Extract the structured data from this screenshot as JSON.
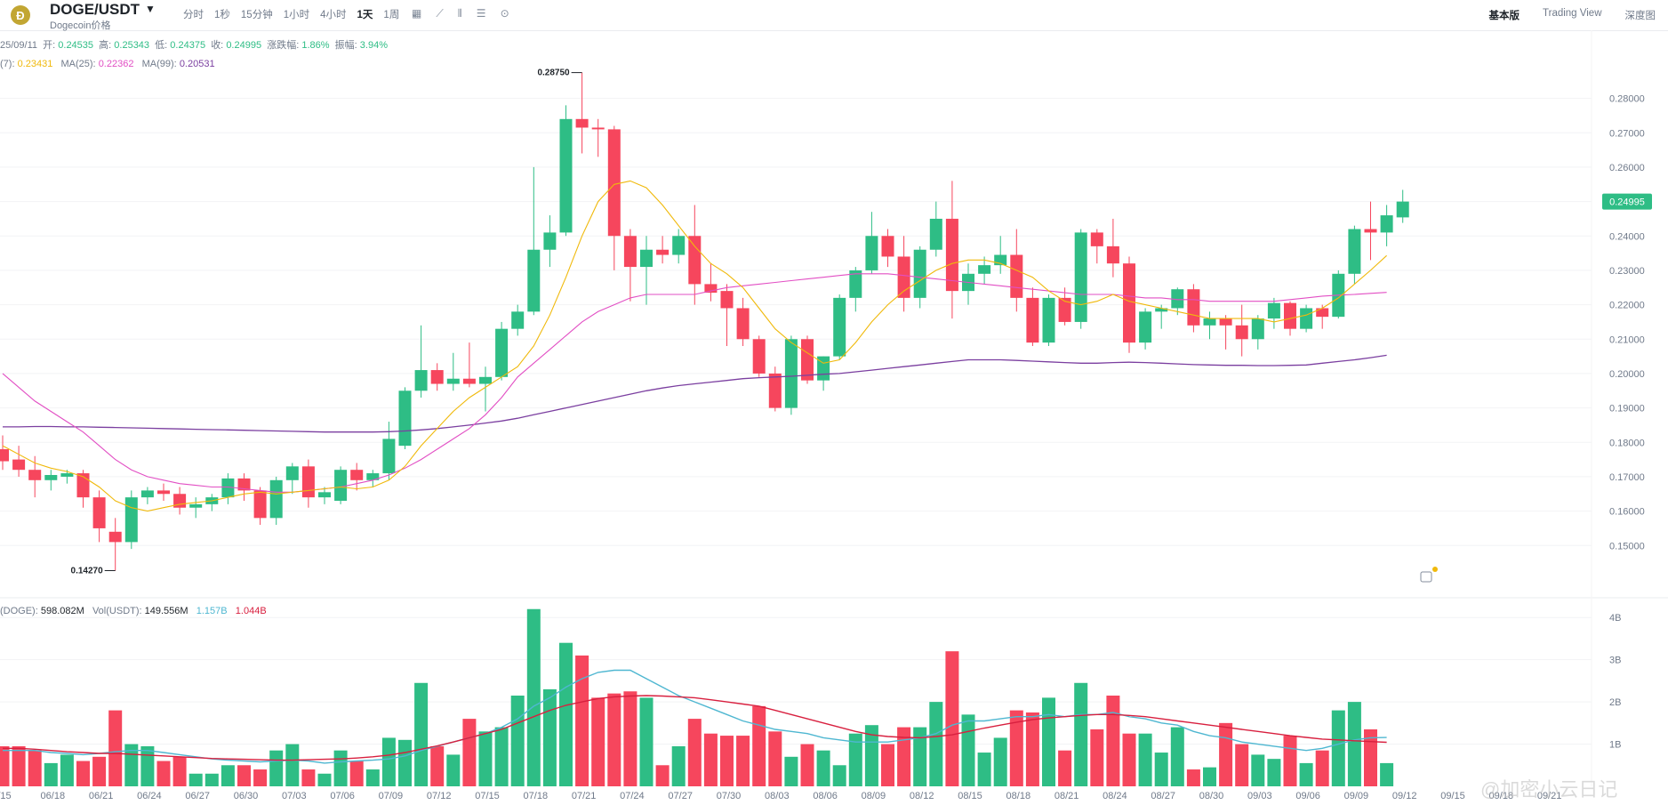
{
  "header": {
    "pair": "DOGE/USDT",
    "subtitle": "Dogecoin价格",
    "intervals": [
      "分时",
      "1秒",
      "15分钟",
      "1小时",
      "4小时",
      "1天",
      "1周"
    ],
    "active_interval": "1天",
    "views": [
      "基本版",
      "Trading View",
      "深度图"
    ],
    "active_view": "基本版"
  },
  "ohlc_row": {
    "date": "25/09/11",
    "open_label": "开:",
    "open": "0.24535",
    "high_label": "高:",
    "high": "0.25343",
    "low_label": "低:",
    "low": "0.24375",
    "close_label": "收:",
    "close": "0.24995",
    "change_label": "涨跌幅:",
    "change": "1.86%",
    "amplitude_label": "振幅:",
    "amplitude": "3.94%"
  },
  "ma_row": {
    "ma7_prefix": "(7):",
    "ma7": "0.23431",
    "ma25_label": "MA(25):",
    "ma25": "0.22362",
    "ma99_label": "MA(99):",
    "ma99": "0.20531"
  },
  "vol_row": {
    "vol_doge_label": "(DOGE):",
    "vol_doge": "598.082M",
    "vol_usdt_label": "Vol(USDT):",
    "vol_usdt": "149.556M",
    "vma1": "1.157B",
    "vma2": "1.044B"
  },
  "chart_data": {
    "type": "candlestick",
    "price_ticks": [
      "0.28000",
      "0.27000",
      "0.26000",
      "0.25000",
      "0.24000",
      "0.23000",
      "0.22000",
      "0.21000",
      "0.20000",
      "0.19000",
      "0.18000",
      "0.17000",
      "0.16000",
      "0.15000"
    ],
    "price_range": [
      0.1405,
      0.2905
    ],
    "volume_ticks": [
      "4B",
      "3B",
      "2B",
      "1B"
    ],
    "volume_range": [
      0,
      4.3
    ],
    "current_price_label": "0.24995",
    "max_annotation": "0.28750",
    "min_annotation": "0.14270",
    "x_tick_labels": [
      "/15",
      "06/18",
      "06/21",
      "06/24",
      "06/27",
      "06/30",
      "07/03",
      "07/06",
      "07/09",
      "07/12",
      "07/15",
      "07/18",
      "07/21",
      "07/24",
      "07/27",
      "07/30",
      "08/03",
      "08/06",
      "08/09",
      "08/12",
      "08/15",
      "08/18",
      "08/21",
      "08/24",
      "08/27",
      "08/30",
      "09/03",
      "09/06",
      "09/09",
      "09/12",
      "09/15",
      "09/18",
      "09/21"
    ],
    "candles": [
      {
        "o": 0.178,
        "h": 0.182,
        "l": 0.172,
        "c": 0.1745
      },
      {
        "o": 0.175,
        "h": 0.179,
        "l": 0.17,
        "c": 0.172
      },
      {
        "o": 0.172,
        "h": 0.176,
        "l": 0.164,
        "c": 0.169
      },
      {
        "o": 0.169,
        "h": 0.172,
        "l": 0.166,
        "c": 0.1705
      },
      {
        "o": 0.17,
        "h": 0.172,
        "l": 0.168,
        "c": 0.171
      },
      {
        "o": 0.171,
        "h": 0.172,
        "l": 0.161,
        "c": 0.164
      },
      {
        "o": 0.164,
        "h": 0.166,
        "l": 0.151,
        "c": 0.155
      },
      {
        "o": 0.154,
        "h": 0.158,
        "l": 0.1427,
        "c": 0.151
      },
      {
        "o": 0.151,
        "h": 0.166,
        "l": 0.149,
        "c": 0.164
      },
      {
        "o": 0.164,
        "h": 0.167,
        "l": 0.162,
        "c": 0.166
      },
      {
        "o": 0.166,
        "h": 0.168,
        "l": 0.163,
        "c": 0.165
      },
      {
        "o": 0.165,
        "h": 0.167,
        "l": 0.159,
        "c": 0.161
      },
      {
        "o": 0.161,
        "h": 0.164,
        "l": 0.158,
        "c": 0.162
      },
      {
        "o": 0.162,
        "h": 0.165,
        "l": 0.16,
        "c": 0.164
      },
      {
        "o": 0.164,
        "h": 0.171,
        "l": 0.162,
        "c": 0.1695
      },
      {
        "o": 0.1695,
        "h": 0.171,
        "l": 0.163,
        "c": 0.166
      },
      {
        "o": 0.166,
        "h": 0.167,
        "l": 0.156,
        "c": 0.158
      },
      {
        "o": 0.158,
        "h": 0.17,
        "l": 0.156,
        "c": 0.169
      },
      {
        "o": 0.169,
        "h": 0.174,
        "l": 0.165,
        "c": 0.173
      },
      {
        "o": 0.173,
        "h": 0.175,
        "l": 0.161,
        "c": 0.164
      },
      {
        "o": 0.164,
        "h": 0.167,
        "l": 0.162,
        "c": 0.1655
      },
      {
        "o": 0.163,
        "h": 0.173,
        "l": 0.162,
        "c": 0.172
      },
      {
        "o": 0.172,
        "h": 0.174,
        "l": 0.166,
        "c": 0.169
      },
      {
        "o": 0.169,
        "h": 0.172,
        "l": 0.167,
        "c": 0.171
      },
      {
        "o": 0.171,
        "h": 0.186,
        "l": 0.169,
        "c": 0.181
      },
      {
        "o": 0.179,
        "h": 0.196,
        "l": 0.178,
        "c": 0.195
      },
      {
        "o": 0.195,
        "h": 0.214,
        "l": 0.193,
        "c": 0.201
      },
      {
        "o": 0.201,
        "h": 0.203,
        "l": 0.195,
        "c": 0.197
      },
      {
        "o": 0.197,
        "h": 0.206,
        "l": 0.195,
        "c": 0.1985
      },
      {
        "o": 0.1985,
        "h": 0.209,
        "l": 0.196,
        "c": 0.197
      },
      {
        "o": 0.197,
        "h": 0.202,
        "l": 0.189,
        "c": 0.199
      },
      {
        "o": 0.199,
        "h": 0.215,
        "l": 0.198,
        "c": 0.213
      },
      {
        "o": 0.213,
        "h": 0.22,
        "l": 0.211,
        "c": 0.218
      },
      {
        "o": 0.218,
        "h": 0.26,
        "l": 0.217,
        "c": 0.236
      },
      {
        "o": 0.236,
        "h": 0.246,
        "l": 0.231,
        "c": 0.241
      },
      {
        "o": 0.241,
        "h": 0.278,
        "l": 0.24,
        "c": 0.274
      },
      {
        "o": 0.274,
        "h": 0.2875,
        "l": 0.264,
        "c": 0.2715
      },
      {
        "o": 0.2715,
        "h": 0.274,
        "l": 0.263,
        "c": 0.271
      },
      {
        "o": 0.271,
        "h": 0.272,
        "l": 0.23,
        "c": 0.24
      },
      {
        "o": 0.24,
        "h": 0.242,
        "l": 0.221,
        "c": 0.231
      },
      {
        "o": 0.231,
        "h": 0.24,
        "l": 0.22,
        "c": 0.236
      },
      {
        "o": 0.236,
        "h": 0.24,
        "l": 0.232,
        "c": 0.2345
      },
      {
        "o": 0.2345,
        "h": 0.242,
        "l": 0.232,
        "c": 0.24
      },
      {
        "o": 0.24,
        "h": 0.249,
        "l": 0.22,
        "c": 0.226
      },
      {
        "o": 0.226,
        "h": 0.232,
        "l": 0.221,
        "c": 0.2235
      },
      {
        "o": 0.224,
        "h": 0.226,
        "l": 0.208,
        "c": 0.219
      },
      {
        "o": 0.219,
        "h": 0.222,
        "l": 0.208,
        "c": 0.21
      },
      {
        "o": 0.21,
        "h": 0.211,
        "l": 0.199,
        "c": 0.2
      },
      {
        "o": 0.2,
        "h": 0.202,
        "l": 0.189,
        "c": 0.19
      },
      {
        "o": 0.19,
        "h": 0.211,
        "l": 0.188,
        "c": 0.21
      },
      {
        "o": 0.21,
        "h": 0.211,
        "l": 0.197,
        "c": 0.198
      },
      {
        "o": 0.198,
        "h": 0.205,
        "l": 0.195,
        "c": 0.205
      },
      {
        "o": 0.205,
        "h": 0.223,
        "l": 0.204,
        "c": 0.222
      },
      {
        "o": 0.222,
        "h": 0.231,
        "l": 0.218,
        "c": 0.23
      },
      {
        "o": 0.23,
        "h": 0.247,
        "l": 0.229,
        "c": 0.24
      },
      {
        "o": 0.24,
        "h": 0.242,
        "l": 0.231,
        "c": 0.234
      },
      {
        "o": 0.234,
        "h": 0.24,
        "l": 0.218,
        "c": 0.222
      },
      {
        "o": 0.222,
        "h": 0.237,
        "l": 0.219,
        "c": 0.236
      },
      {
        "o": 0.236,
        "h": 0.25,
        "l": 0.234,
        "c": 0.245
      },
      {
        "o": 0.245,
        "h": 0.256,
        "l": 0.216,
        "c": 0.224
      },
      {
        "o": 0.224,
        "h": 0.232,
        "l": 0.22,
        "c": 0.229
      },
      {
        "o": 0.229,
        "h": 0.234,
        "l": 0.226,
        "c": 0.2315
      },
      {
        "o": 0.2315,
        "h": 0.24,
        "l": 0.229,
        "c": 0.2345
      },
      {
        "o": 0.2345,
        "h": 0.242,
        "l": 0.218,
        "c": 0.222
      },
      {
        "o": 0.222,
        "h": 0.225,
        "l": 0.208,
        "c": 0.209
      },
      {
        "o": 0.209,
        "h": 0.223,
        "l": 0.208,
        "c": 0.222
      },
      {
        "o": 0.222,
        "h": 0.225,
        "l": 0.214,
        "c": 0.215
      },
      {
        "o": 0.215,
        "h": 0.242,
        "l": 0.213,
        "c": 0.241
      },
      {
        "o": 0.241,
        "h": 0.242,
        "l": 0.232,
        "c": 0.237
      },
      {
        "o": 0.237,
        "h": 0.245,
        "l": 0.228,
        "c": 0.232
      },
      {
        "o": 0.232,
        "h": 0.234,
        "l": 0.206,
        "c": 0.209
      },
      {
        "o": 0.209,
        "h": 0.219,
        "l": 0.207,
        "c": 0.218
      },
      {
        "o": 0.218,
        "h": 0.22,
        "l": 0.213,
        "c": 0.219
      },
      {
        "o": 0.219,
        "h": 0.225,
        "l": 0.217,
        "c": 0.2245
      },
      {
        "o": 0.2245,
        "h": 0.226,
        "l": 0.212,
        "c": 0.214
      },
      {
        "o": 0.214,
        "h": 0.218,
        "l": 0.21,
        "c": 0.216
      },
      {
        "o": 0.216,
        "h": 0.217,
        "l": 0.207,
        "c": 0.214
      },
      {
        "o": 0.214,
        "h": 0.22,
        "l": 0.205,
        "c": 0.21
      },
      {
        "o": 0.21,
        "h": 0.217,
        "l": 0.207,
        "c": 0.216
      },
      {
        "o": 0.216,
        "h": 0.222,
        "l": 0.213,
        "c": 0.2205
      },
      {
        "o": 0.2205,
        "h": 0.221,
        "l": 0.211,
        "c": 0.213
      },
      {
        "o": 0.213,
        "h": 0.22,
        "l": 0.212,
        "c": 0.219
      },
      {
        "o": 0.219,
        "h": 0.22,
        "l": 0.213,
        "c": 0.2165
      },
      {
        "o": 0.2165,
        "h": 0.23,
        "l": 0.216,
        "c": 0.229
      },
      {
        "o": 0.229,
        "h": 0.243,
        "l": 0.226,
        "c": 0.242
      },
      {
        "o": 0.242,
        "h": 0.25,
        "l": 0.233,
        "c": 0.241
      },
      {
        "o": 0.241,
        "h": 0.249,
        "l": 0.237,
        "c": 0.246
      },
      {
        "o": 0.2454,
        "h": 0.2534,
        "l": 0.2438,
        "c": 0.25
      }
    ],
    "volumes": [
      0.95,
      0.95,
      0.85,
      0.55,
      0.75,
      0.6,
      0.7,
      1.8,
      1.0,
      0.95,
      0.6,
      0.7,
      0.3,
      0.3,
      0.5,
      0.5,
      0.4,
      0.85,
      1.0,
      0.4,
      0.3,
      0.85,
      0.6,
      0.4,
      1.15,
      1.1,
      2.45,
      0.95,
      0.75,
      1.6,
      1.3,
      1.4,
      2.15,
      4.2,
      2.3,
      3.4,
      3.1,
      2.1,
      2.2,
      2.25,
      2.1,
      0.5,
      0.95,
      1.6,
      1.25,
      1.2,
      1.2,
      1.9,
      1.3,
      0.7,
      1.0,
      0.85,
      0.5,
      1.25,
      1.45,
      1.0,
      1.4,
      1.4,
      2.0,
      3.2,
      1.7,
      0.8,
      1.15,
      1.8,
      1.75,
      2.1,
      0.85,
      2.45,
      1.35,
      2.15,
      1.25,
      1.25,
      0.8,
      1.4,
      0.4,
      0.45,
      1.5,
      1.0,
      0.75,
      0.65,
      1.2,
      0.55,
      0.85,
      1.8,
      2.0,
      1.35,
      0.55
    ],
    "ma7": [
      0.179,
      0.1765,
      0.174,
      0.1725,
      0.1715,
      0.17,
      0.167,
      0.163,
      0.161,
      0.16,
      0.161,
      0.162,
      0.1625,
      0.163,
      0.164,
      0.165,
      0.1655,
      0.165,
      0.1655,
      0.166,
      0.1665,
      0.167,
      0.1665,
      0.167,
      0.169,
      0.173,
      0.179,
      0.184,
      0.189,
      0.193,
      0.196,
      0.199,
      0.202,
      0.208,
      0.217,
      0.228,
      0.24,
      0.25,
      0.255,
      0.256,
      0.254,
      0.249,
      0.243,
      0.237,
      0.232,
      0.229,
      0.225,
      0.219,
      0.213,
      0.209,
      0.206,
      0.203,
      0.204,
      0.209,
      0.215,
      0.22,
      0.224,
      0.227,
      0.23,
      0.232,
      0.233,
      0.233,
      0.232,
      0.23,
      0.228,
      0.224,
      0.221,
      0.22,
      0.221,
      0.223,
      0.221,
      0.22,
      0.219,
      0.218,
      0.217,
      0.216,
      0.216,
      0.216,
      0.216,
      0.215,
      0.216,
      0.217,
      0.219,
      0.222,
      0.226,
      0.23,
      0.2343
    ],
    "ma25": [
      0.2,
      0.196,
      0.192,
      0.189,
      0.186,
      0.183,
      0.179,
      0.175,
      0.172,
      0.17,
      0.169,
      0.168,
      0.1675,
      0.167,
      0.167,
      0.1665,
      0.166,
      0.1655,
      0.1655,
      0.166,
      0.1665,
      0.167,
      0.168,
      0.169,
      0.1705,
      0.1725,
      0.175,
      0.178,
      0.181,
      0.184,
      0.188,
      0.193,
      0.199,
      0.203,
      0.207,
      0.211,
      0.215,
      0.218,
      0.22,
      0.222,
      0.223,
      0.223,
      0.223,
      0.223,
      0.224,
      0.225,
      0.2255,
      0.226,
      0.2265,
      0.227,
      0.2275,
      0.228,
      0.2285,
      0.229,
      0.229,
      0.229,
      0.2285,
      0.228,
      0.2275,
      0.227,
      0.2265,
      0.226,
      0.2255,
      0.225,
      0.2245,
      0.224,
      0.2235,
      0.223,
      0.223,
      0.223,
      0.2225,
      0.222,
      0.222,
      0.2215,
      0.2215,
      0.221,
      0.221,
      0.221,
      0.221,
      0.221,
      0.2215,
      0.222,
      0.2225,
      0.2228,
      0.223,
      0.2233,
      0.2236
    ],
    "ma99": [
      0.1845,
      0.1845,
      0.1846,
      0.1846,
      0.1845,
      0.1845,
      0.1844,
      0.1843,
      0.1842,
      0.1841,
      0.184,
      0.1839,
      0.1838,
      0.1837,
      0.1836,
      0.1835,
      0.1834,
      0.1833,
      0.1832,
      0.1831,
      0.183,
      0.183,
      0.183,
      0.183,
      0.1831,
      0.1833,
      0.1836,
      0.184,
      0.1845,
      0.185,
      0.1856,
      0.1862,
      0.187,
      0.188,
      0.189,
      0.19,
      0.191,
      0.192,
      0.193,
      0.194,
      0.195,
      0.1958,
      0.1965,
      0.197,
      0.1975,
      0.198,
      0.1985,
      0.1988,
      0.199,
      0.1992,
      0.1995,
      0.1998,
      0.2,
      0.2005,
      0.201,
      0.2015,
      0.202,
      0.2025,
      0.203,
      0.2035,
      0.204,
      0.204,
      0.204,
      0.2038,
      0.2036,
      0.2034,
      0.2032,
      0.203,
      0.203,
      0.2032,
      0.2033,
      0.2032,
      0.203,
      0.2028,
      0.2026,
      0.2025,
      0.2024,
      0.2024,
      0.2023,
      0.2023,
      0.2024,
      0.2025,
      0.203,
      0.2035,
      0.204,
      0.2046,
      0.2053
    ],
    "vma_a": [
      0.85,
      0.85,
      0.85,
      0.8,
      0.78,
      0.75,
      0.78,
      0.82,
      0.85,
      0.85,
      0.8,
      0.75,
      0.7,
      0.65,
      0.62,
      0.6,
      0.58,
      0.6,
      0.62,
      0.6,
      0.55,
      0.58,
      0.6,
      0.62,
      0.65,
      0.72,
      0.85,
      0.95,
      1.05,
      1.15,
      1.25,
      1.4,
      1.6,
      1.9,
      2.1,
      2.35,
      2.55,
      2.7,
      2.75,
      2.75,
      2.55,
      2.35,
      2.15,
      2.0,
      1.85,
      1.7,
      1.55,
      1.45,
      1.35,
      1.3,
      1.25,
      1.15,
      1.1,
      1.05,
      1.05,
      1.05,
      1.1,
      1.15,
      1.25,
      1.45,
      1.55,
      1.55,
      1.6,
      1.65,
      1.65,
      1.7,
      1.65,
      1.7,
      1.7,
      1.75,
      1.65,
      1.6,
      1.5,
      1.45,
      1.3,
      1.2,
      1.15,
      1.05,
      1.0,
      0.95,
      0.9,
      0.85,
      0.9,
      1.0,
      1.1,
      1.15,
      1.157
    ],
    "vma_b": [
      0.9,
      0.9,
      0.88,
      0.85,
      0.82,
      0.8,
      0.78,
      0.78,
      0.76,
      0.74,
      0.72,
      0.7,
      0.68,
      0.66,
      0.65,
      0.64,
      0.63,
      0.62,
      0.62,
      0.63,
      0.64,
      0.65,
      0.67,
      0.7,
      0.74,
      0.8,
      0.88,
      0.96,
      1.05,
      1.15,
      1.25,
      1.35,
      1.5,
      1.65,
      1.8,
      1.92,
      2.0,
      2.08,
      2.12,
      2.14,
      2.15,
      2.14,
      2.12,
      2.1,
      2.05,
      2.0,
      1.95,
      1.9,
      1.8,
      1.7,
      1.6,
      1.5,
      1.4,
      1.3,
      1.22,
      1.18,
      1.16,
      1.15,
      1.18,
      1.22,
      1.3,
      1.38,
      1.45,
      1.52,
      1.58,
      1.62,
      1.65,
      1.68,
      1.7,
      1.7,
      1.68,
      1.65,
      1.6,
      1.55,
      1.5,
      1.45,
      1.4,
      1.35,
      1.3,
      1.25,
      1.2,
      1.16,
      1.12,
      1.1,
      1.08,
      1.06,
      1.044
    ]
  },
  "colors": {
    "up": "#2ebd85",
    "down": "#f6465d",
    "ma7": "#f0b90b",
    "ma25": "#e24fc4",
    "ma99": "#7b3fa0",
    "vma_a": "#4fb7d1",
    "vma_b": "#d8203f",
    "grid": "#f2f3f5",
    "axis_text": "#707a8a"
  },
  "watermark": "@加密小云日记"
}
